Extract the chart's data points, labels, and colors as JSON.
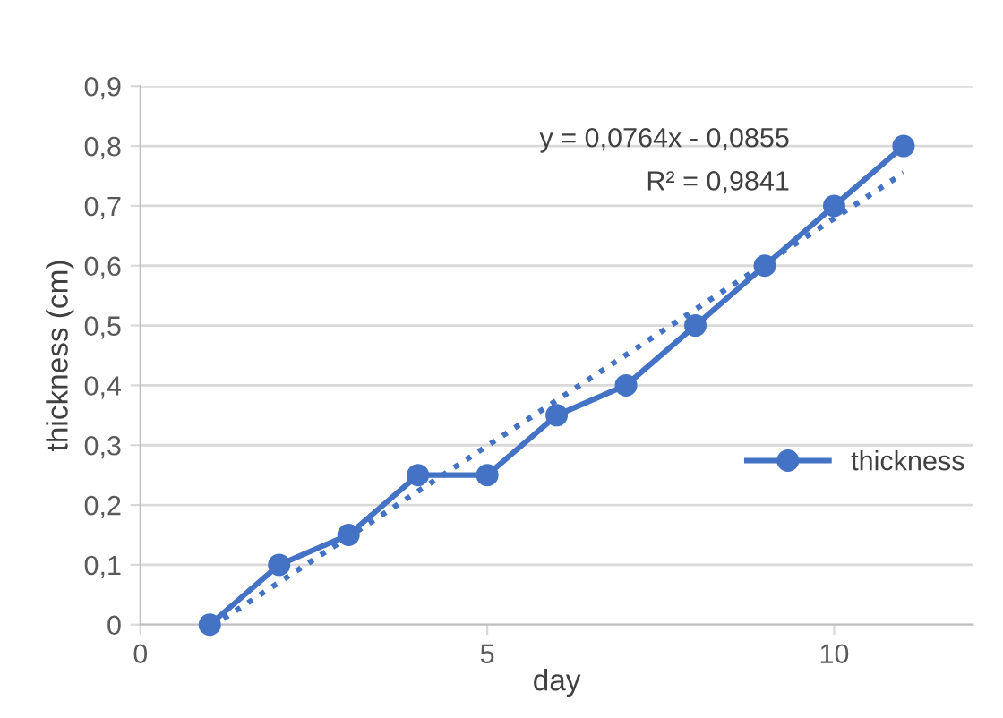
{
  "chart_data": {
    "type": "line",
    "xlabel": "day",
    "ylabel": "thickness (cm)",
    "x": [
      1,
      2,
      3,
      4,
      5,
      6,
      7,
      8,
      9,
      10,
      11
    ],
    "series": [
      {
        "name": "thickness",
        "color": "#4472c4",
        "values": [
          0,
          0.1,
          0.15,
          0.25,
          0.25,
          0.35,
          0.4,
          0.5,
          0.6,
          0.7,
          0.8
        ],
        "marker": "circle",
        "line_style": "solid"
      },
      {
        "color": "#4472c4",
        "x": [
          1.2,
          11
        ],
        "values": [
          0.01,
          0.755
        ],
        "marker": "none",
        "line_style": "dotted"
      }
    ],
    "annotations": [
      "y = 0,0764x - 0,0855",
      "R² = 0,9841"
    ],
    "xlim": [
      0,
      12
    ],
    "xticks": [
      0,
      5,
      10
    ],
    "ylim": [
      0,
      0.9
    ],
    "yticks": [
      {
        "value": 0,
        "label": "0"
      },
      {
        "value": 0.1,
        "label": "0,1"
      },
      {
        "value": 0.2,
        "label": "0,2"
      },
      {
        "value": 0.3,
        "label": "0,3"
      },
      {
        "value": 0.4,
        "label": "0,4"
      },
      {
        "value": 0.5,
        "label": "0,5"
      },
      {
        "value": 0.6,
        "label": "0,6"
      },
      {
        "value": 0.7,
        "label": "0,7"
      },
      {
        "value": 0.8,
        "label": "0,8"
      },
      {
        "value": 0.9,
        "label": "0,9"
      }
    ],
    "grid": "y",
    "legend": "center right"
  }
}
